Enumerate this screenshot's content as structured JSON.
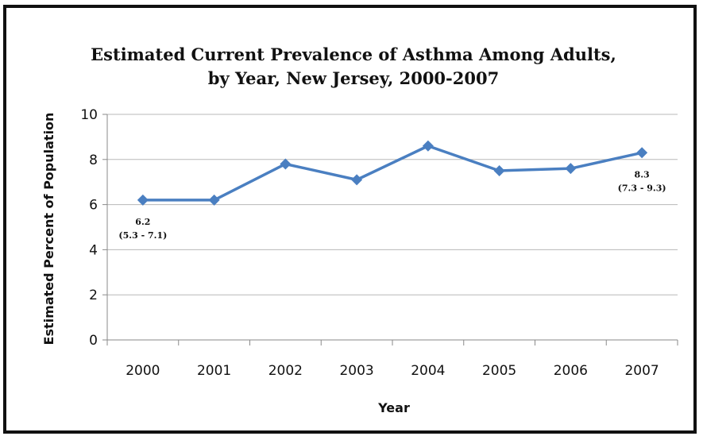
{
  "chart_data": {
    "type": "line",
    "title": [
      "Estimated Current Prevalence of Asthma Among Adults,",
      "by Year, New Jersey, 2000-2007"
    ],
    "xlabel": "Year",
    "ylabel": "Estimated Percent of Population",
    "categories": [
      "2000",
      "2001",
      "2002",
      "2003",
      "2004",
      "2005",
      "2006",
      "2007"
    ],
    "series": [
      {
        "values": [
          6.2,
          6.2,
          7.8,
          7.1,
          8.6,
          7.5,
          7.6,
          8.3
        ],
        "color": "#4a7fc1"
      }
    ],
    "ylim": [
      0,
      10
    ],
    "yticks": [
      0,
      2,
      4,
      6,
      8,
      10
    ],
    "grid": true,
    "annotations": [
      {
        "index": 0,
        "value": "6.2",
        "interval": "(5.3 - 7.1)"
      },
      {
        "index": 7,
        "value": "8.3",
        "interval": "(7.3 - 9.3)"
      }
    ]
  }
}
